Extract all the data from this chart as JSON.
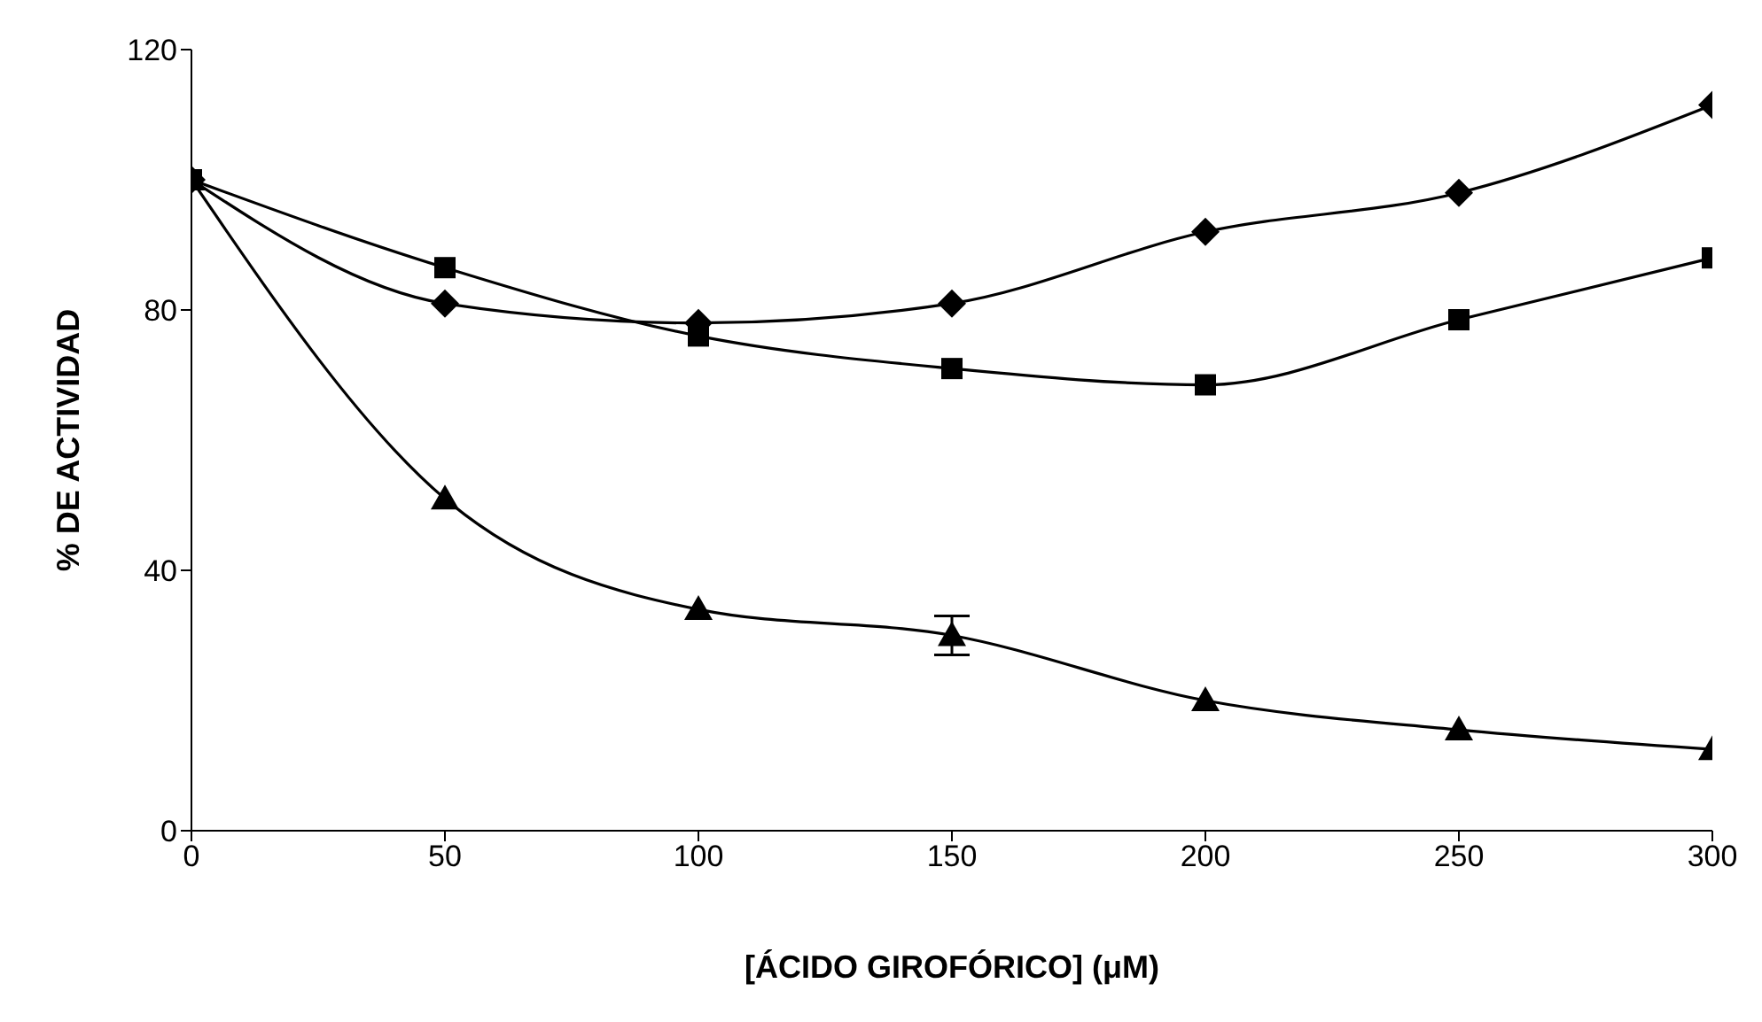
{
  "chart_data": {
    "type": "line",
    "xlabel": "[ÁCIDO GIROFÓRICO]  (μM)",
    "ylabel": "% DE ACTIVIDAD",
    "x": [
      0,
      50,
      100,
      150,
      200,
      250,
      300
    ],
    "series": [
      {
        "color": "#000000",
        "marker": "diamond",
        "values": [
          100,
          81,
          78,
          81,
          92,
          98,
          111.5
        ]
      },
      {
        "color": "#000000",
        "marker": "square",
        "values": [
          100,
          86.5,
          76,
          71,
          68.5,
          78.5,
          88
        ]
      },
      {
        "color": "#000000",
        "marker": "triangle",
        "values": [
          100,
          51,
          34,
          30,
          20,
          15.5,
          12.5
        ],
        "errors": [
          null,
          null,
          null,
          3,
          null,
          null,
          null
        ]
      }
    ],
    "xlim": [
      0,
      300
    ],
    "xticks": [
      0,
      50,
      100,
      150,
      200,
      250,
      300
    ],
    "ylim": [
      0,
      120
    ],
    "yticks": [
      0,
      40,
      80,
      120
    ],
    "grid": false,
    "legend": false,
    "line_style": "solid"
  }
}
